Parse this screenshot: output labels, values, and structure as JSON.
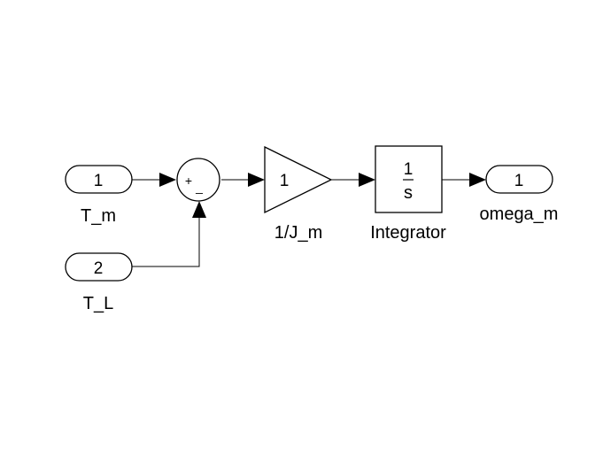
{
  "inports": [
    {
      "number": "1",
      "name": "T_m"
    },
    {
      "number": "2",
      "name": "T_L"
    }
  ],
  "sum": {
    "plus_sign": "+",
    "minus_sign": "_"
  },
  "gain": {
    "value": "1",
    "name": "1/J_m"
  },
  "integrator": {
    "numerator": "1",
    "denominator": "s",
    "name": "Integrator"
  },
  "outport": {
    "number": "1",
    "name": "omega_m"
  }
}
